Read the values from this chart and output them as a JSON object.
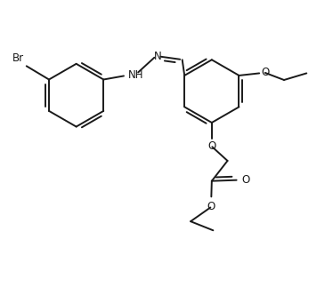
{
  "bg_color": "#ffffff",
  "line_color": "#1a1a1a",
  "line_width": 1.4,
  "figsize": [
    3.74,
    3.23
  ],
  "dpi": 100,
  "br_label": "Br",
  "nh_label": "NH",
  "n_label": "N",
  "o_label": "O"
}
